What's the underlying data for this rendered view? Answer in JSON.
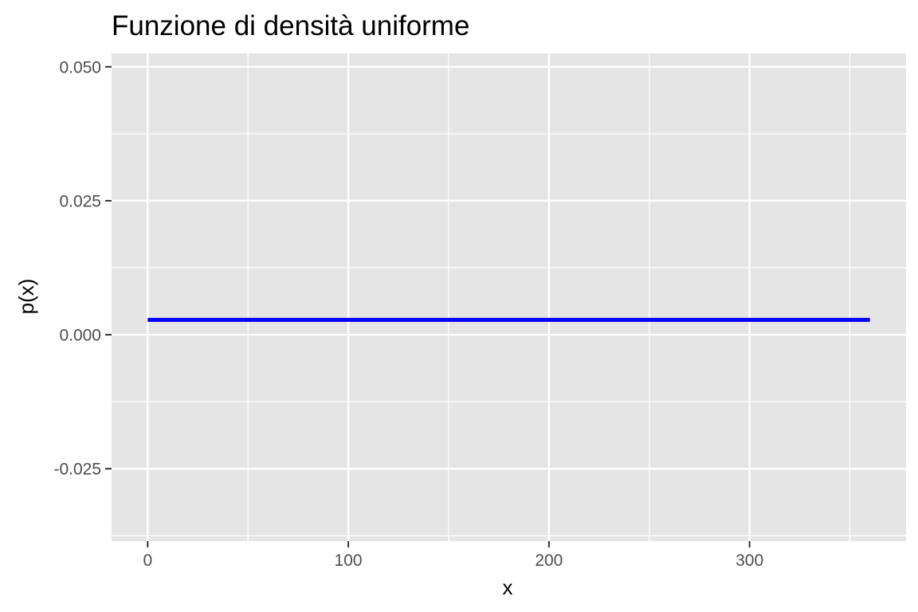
{
  "chart_data": {
    "type": "line",
    "title": "Funzione di densità uniforme",
    "xlabel": "x",
    "ylabel": "p(x)",
    "xlim": [
      -18,
      378
    ],
    "ylim": [
      -0.0385,
      0.0525
    ],
    "x_ticks": [
      0,
      100,
      200,
      300
    ],
    "x_tick_labels": [
      "0",
      "100",
      "200",
      "300"
    ],
    "x_minor_ticks": [
      50,
      150,
      250,
      350
    ],
    "y_ticks": [
      -0.025,
      0,
      0.025,
      0.05
    ],
    "y_tick_labels": [
      "-0.025",
      "0.000",
      "0.025",
      "0.050"
    ],
    "y_minor_ticks": [
      -0.0375,
      -0.0125,
      0.0125,
      0.0375
    ],
    "grid": true,
    "series": [
      {
        "x": [
          0,
          360
        ],
        "y": [
          0.00278,
          0.00278
        ],
        "color": "#0000ff"
      }
    ]
  },
  "colors": {
    "panel_background": "#e5e5e5",
    "grid": "#ffffff",
    "tick_text": "#4d4d4d",
    "tick_mark": "#333333",
    "series_line": "#0000ff"
  }
}
